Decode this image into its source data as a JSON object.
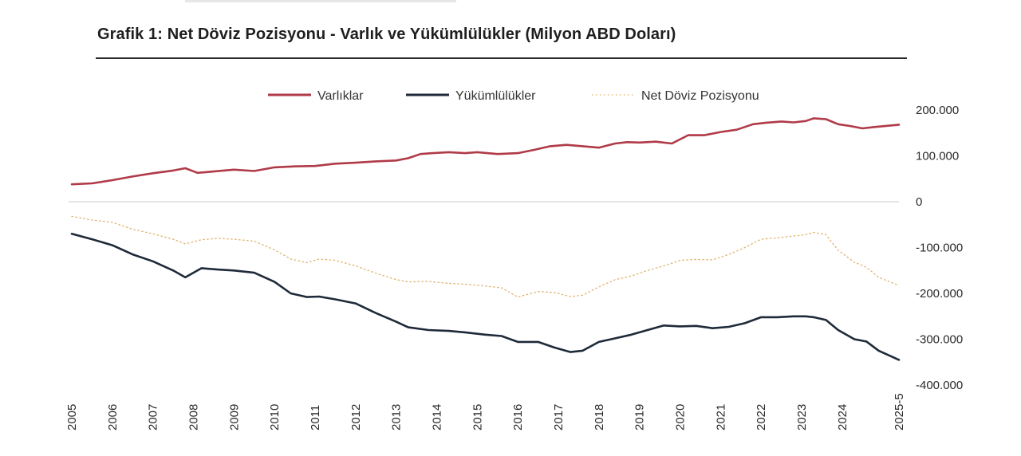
{
  "title": "Grafik 1: Net Döviz Pozisyonu - Varlık ve Yükümlülükler (Milyon ABD Doları)",
  "chart_data": {
    "type": "line",
    "title": "Grafik 1: Net Döviz Pozisyonu - Varlık ve Yükümlülükler (Milyon ABD Doları)",
    "ylim": [
      -400000,
      200000
    ],
    "yticks": [
      200000,
      100000,
      0,
      -100000,
      -200000,
      -300000,
      -400000
    ],
    "ytick_labels": [
      "200.000",
      "100.000",
      "0",
      "-100.000",
      "-200.000",
      "-300.000",
      "-400.000"
    ],
    "xlim": [
      2005,
      2025.4
    ],
    "xtick_labels": [
      "2005",
      "2006",
      "2007",
      "2008",
      "2009",
      "2010",
      "2011",
      "2012",
      "2013",
      "2014",
      "2015",
      "2016",
      "2017",
      "2018",
      "2019",
      "2020",
      "2021",
      "2022",
      "2023",
      "2024",
      "2025-5"
    ],
    "grid": false,
    "legend_position": "top",
    "series": [
      {
        "name": "Varlıklar",
        "color": "#b03a48",
        "style": "solid",
        "x": [
          2005,
          2005.5,
          2006,
          2006.5,
          2007,
          2007.5,
          2007.8,
          2008.1,
          2008.5,
          2009,
          2009.5,
          2010,
          2010.5,
          2011,
          2011.5,
          2012,
          2012.5,
          2013,
          2013.3,
          2013.6,
          2013.9,
          2014.3,
          2014.7,
          2015,
          2015.5,
          2016,
          2016.4,
          2016.8,
          2017.2,
          2017.6,
          2018,
          2018.4,
          2018.7,
          2019,
          2019.4,
          2019.8,
          2020.2,
          2020.6,
          2021,
          2021.4,
          2021.8,
          2022.1,
          2022.5,
          2022.8,
          2023.1,
          2023.3,
          2023.6,
          2023.9,
          2024.2,
          2024.5,
          2024.8,
          2025.4
        ],
        "values": [
          38000,
          40000,
          47000,
          55000,
          62000,
          68000,
          73000,
          63000,
          66000,
          70000,
          67000,
          75000,
          77000,
          78000,
          83000,
          85000,
          88000,
          90000,
          95000,
          104000,
          106000,
          108000,
          106000,
          108000,
          104000,
          106000,
          113000,
          121000,
          124000,
          121000,
          118000,
          127000,
          130000,
          129000,
          131000,
          127000,
          145000,
          145000,
          152000,
          157000,
          169000,
          172000,
          175000,
          173000,
          176000,
          182000,
          180000,
          169000,
          165000,
          160000,
          163000,
          168000
        ]
      },
      {
        "name": "Yükümlülükler",
        "color": "#1e2a3a",
        "style": "solid",
        "x": [
          2005,
          2005.5,
          2006,
          2006.5,
          2007,
          2007.5,
          2007.8,
          2008.2,
          2008.6,
          2009,
          2009.5,
          2010,
          2010.4,
          2010.8,
          2011.1,
          2011.5,
          2012,
          2012.5,
          2013,
          2013.3,
          2013.8,
          2014.3,
          2014.7,
          2015.2,
          2015.6,
          2016,
          2016.5,
          2016.9,
          2017.3,
          2017.6,
          2018,
          2018.4,
          2018.8,
          2019.2,
          2019.6,
          2020,
          2020.4,
          2020.8,
          2021.2,
          2021.6,
          2022,
          2022.4,
          2022.8,
          2023.1,
          2023.3,
          2023.6,
          2023.9,
          2024.3,
          2024.6,
          2024.9,
          2025.4
        ],
        "values": [
          -70000,
          -82000,
          -95000,
          -115000,
          -130000,
          -150000,
          -165000,
          -145000,
          -148000,
          -150000,
          -155000,
          -175000,
          -200000,
          -208000,
          -207000,
          -213000,
          -222000,
          -243000,
          -262000,
          -274000,
          -280000,
          -282000,
          -285000,
          -290000,
          -293000,
          -306000,
          -306000,
          -318000,
          -328000,
          -325000,
          -306000,
          -298000,
          -290000,
          -280000,
          -270000,
          -272000,
          -271000,
          -276000,
          -273000,
          -265000,
          -252000,
          -252000,
          -250000,
          -250000,
          -252000,
          -258000,
          -280000,
          -300000,
          -305000,
          -325000,
          -345000
        ]
      },
      {
        "name": "Net Döviz Pozisyonu",
        "color": "#e0b26c",
        "style": "dotted",
        "x": [
          2005,
          2005.5,
          2006,
          2006.5,
          2007,
          2007.5,
          2007.8,
          2008.2,
          2008.6,
          2009,
          2009.5,
          2010,
          2010.4,
          2010.8,
          2011.1,
          2011.5,
          2012,
          2012.5,
          2013,
          2013.3,
          2013.8,
          2014.3,
          2014.7,
          2015.2,
          2015.6,
          2016,
          2016.5,
          2016.9,
          2017.3,
          2017.6,
          2018,
          2018.4,
          2018.8,
          2019.2,
          2019.6,
          2020,
          2020.4,
          2020.8,
          2021.2,
          2021.6,
          2022,
          2022.4,
          2022.8,
          2023.1,
          2023.3,
          2023.6,
          2023.9,
          2024.3,
          2024.6,
          2024.9,
          2025.4
        ],
        "values": [
          -32000,
          -40000,
          -45000,
          -60000,
          -70000,
          -82000,
          -92000,
          -83000,
          -80000,
          -82000,
          -86000,
          -105000,
          -125000,
          -133000,
          -125000,
          -128000,
          -140000,
          -156000,
          -170000,
          -175000,
          -174000,
          -178000,
          -180000,
          -184000,
          -188000,
          -208000,
          -196000,
          -198000,
          -207000,
          -204000,
          -186000,
          -170000,
          -162000,
          -150000,
          -140000,
          -128000,
          -126000,
          -127000,
          -115000,
          -100000,
          -82000,
          -79000,
          -75000,
          -72000,
          -67000,
          -72000,
          -106000,
          -132000,
          -143000,
          -165000,
          -183000
        ]
      }
    ]
  }
}
